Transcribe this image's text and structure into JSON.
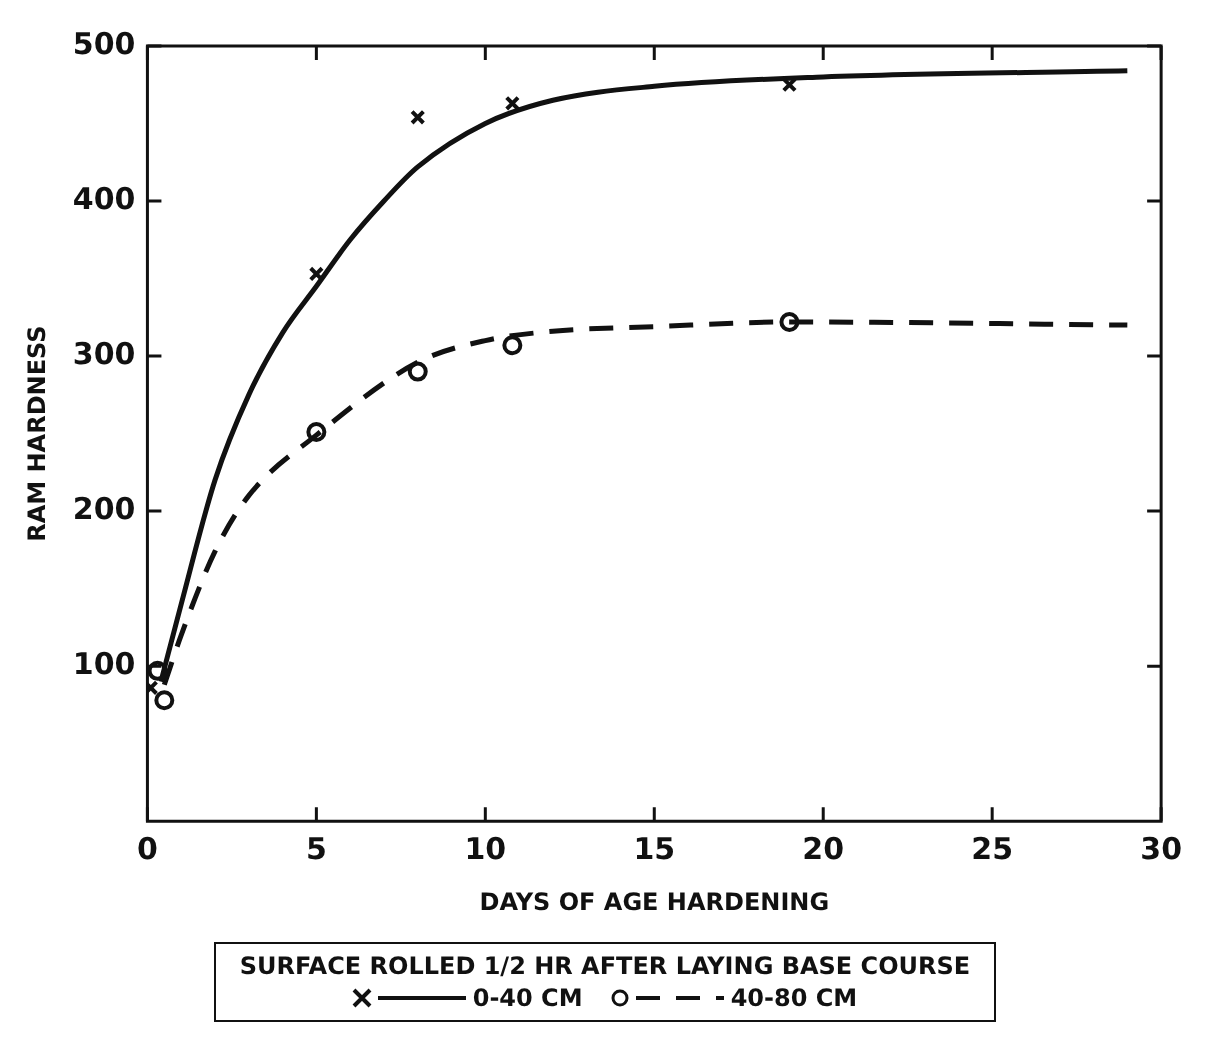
{
  "chart_data": {
    "type": "line",
    "xlabel": "DAYS OF AGE HARDENING",
    "ylabel": "RAM HARDNESS",
    "legend_title": "SURFACE ROLLED 1/2 HR AFTER LAYING BASE COURSE",
    "xlim": [
      0,
      30
    ],
    "xticks": [
      0,
      5,
      10,
      15,
      20,
      25,
      30
    ],
    "ylim": [
      0,
      500
    ],
    "yticks": [
      100,
      200,
      300,
      400,
      500
    ],
    "grid": false,
    "legend": "bottom",
    "series": [
      {
        "type": "scatter",
        "marker": "cross",
        "color": "#111111",
        "x": [
          0.1,
          5,
          8,
          10.8,
          19
        ],
        "values": [
          86,
          353,
          454,
          463,
          475
        ]
      },
      {
        "type": "line",
        "name": "0-40 CM",
        "line_style": "solid",
        "color": "#111111",
        "x": [
          0.4,
          1,
          2,
          3,
          4,
          5,
          6,
          7,
          8,
          10,
          12,
          15,
          20,
          29
        ],
        "values": [
          90,
          140,
          220,
          275,
          315,
          345,
          375,
          400,
          422,
          450,
          465,
          474,
          480,
          484
        ]
      },
      {
        "type": "scatter",
        "marker": "circle",
        "color": "#111111",
        "x": [
          0.3,
          0.5,
          5,
          8,
          10.8,
          19
        ],
        "values": [
          97,
          78,
          251,
          290,
          307,
          322
        ]
      },
      {
        "type": "line",
        "name": "40-80 CM",
        "line_style": "dashed",
        "color": "#111111",
        "x": [
          0.5,
          1,
          2,
          3,
          5,
          8,
          10,
          12,
          15,
          19,
          29
        ],
        "values": [
          88,
          120,
          174,
          210,
          249,
          296,
          310,
          316,
          319,
          322,
          320
        ]
      }
    ]
  }
}
